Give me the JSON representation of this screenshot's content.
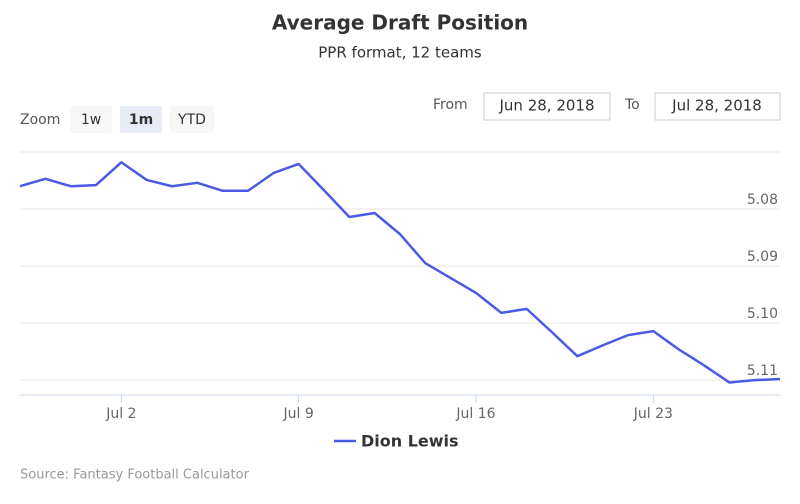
{
  "chart_data": {
    "type": "line",
    "title": "Average Draft Position",
    "subtitle": "PPR format, 12 teams",
    "x": [
      "2018-06-28",
      "2018-06-29",
      "2018-06-30",
      "2018-07-01",
      "2018-07-02",
      "2018-07-03",
      "2018-07-04",
      "2018-07-05",
      "2018-07-06",
      "2018-07-07",
      "2018-07-08",
      "2018-07-09",
      "2018-07-10",
      "2018-07-11",
      "2018-07-12",
      "2018-07-13",
      "2018-07-14",
      "2018-07-15",
      "2018-07-16",
      "2018-07-17",
      "2018-07-18",
      "2018-07-19",
      "2018-07-20",
      "2018-07-21",
      "2018-07-22",
      "2018-07-23",
      "2018-07-24",
      "2018-07-25",
      "2018-07-26",
      "2018-07-27",
      "2018-07-28"
    ],
    "series": [
      {
        "name": "Dion Lewis",
        "color": "#4b5ae4",
        "values": [
          5.076,
          5.0747,
          5.076,
          5.0758,
          5.0718,
          5.0749,
          5.076,
          5.0754,
          5.0768,
          5.0768,
          5.0737,
          5.0721,
          5.0767,
          5.0814,
          5.0807,
          5.0844,
          5.0895,
          5.0921,
          5.0947,
          5.0982,
          5.0975,
          5.1016,
          5.1058,
          5.1039,
          5.1021,
          5.1014,
          5.1046,
          5.1074,
          5.1104,
          5.11,
          5.1098
        ]
      }
    ],
    "xlim": [
      "2018-06-28",
      "2018-07-28"
    ],
    "xticks": [
      {
        "value": "2018-07-02",
        "label": "Jul 2"
      },
      {
        "value": "2018-07-09",
        "label": "Jul 9"
      },
      {
        "value": "2018-07-16",
        "label": "Jul 16"
      },
      {
        "value": "2018-07-23",
        "label": "Jul 23"
      }
    ],
    "ylim": [
      5.07,
      5.1126
    ],
    "yticks": [
      5.08,
      5.09,
      {
        "value": 5.1,
        "label": "5.10"
      },
      5.11
    ],
    "y_reversed": true,
    "grid": true,
    "legend": "bottom"
  },
  "range_selector": {
    "zoom_label": "Zoom",
    "buttons": [
      "1w",
      "1m",
      "YTD"
    ],
    "active": 1,
    "from_label": "From",
    "from": "Jun 28, 2018",
    "to_label": "To",
    "to": "Jul 28, 2018"
  },
  "credits": "Source: Fantasy Football Calculator"
}
